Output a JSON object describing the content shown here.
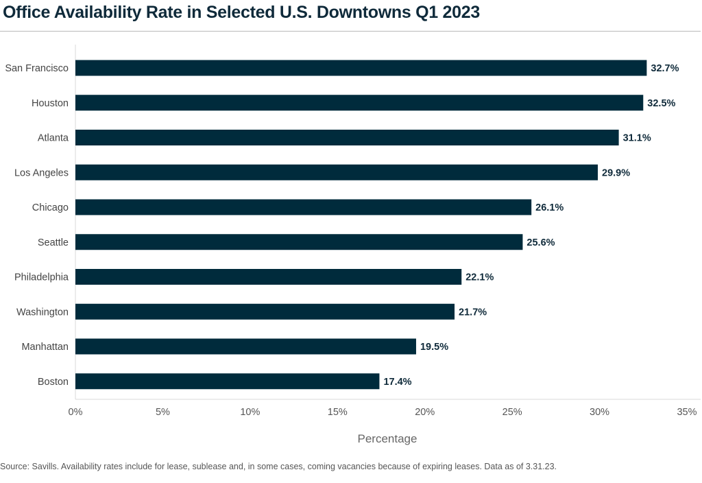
{
  "chart_data": {
    "type": "bar",
    "orientation": "horizontal",
    "title": "Office Availability Rate in Selected U.S. Downtowns Q1 2023",
    "xlabel": "Percentage",
    "ylabel": "",
    "categories": [
      "San Francisco",
      "Houston",
      "Atlanta",
      "Los Angeles",
      "Chicago",
      "Seattle",
      "Philadelphia",
      "Washington",
      "Manhattan",
      "Boston"
    ],
    "values": [
      32.7,
      32.5,
      31.1,
      29.9,
      26.1,
      25.6,
      22.1,
      21.7,
      19.5,
      17.4
    ],
    "value_labels": [
      "32.7%",
      "32.5%",
      "31.1%",
      "29.9%",
      "26.1%",
      "25.6%",
      "22.1%",
      "21.7%",
      "19.5%",
      "17.4%"
    ],
    "xlim": [
      0,
      35
    ],
    "xticks": [
      0,
      5,
      10,
      15,
      20,
      25,
      30,
      35
    ],
    "xtick_labels": [
      "0%",
      "5%",
      "10%",
      "15%",
      "20%",
      "25%",
      "30%",
      "35%"
    ],
    "grid": false,
    "legend": "none",
    "bar_color": "#002b3c",
    "source": "Source: Savills. Availability rates include for lease, sublease and, in some cases, coming vacancies because of expiring leases. Data as of 3.31.23."
  }
}
